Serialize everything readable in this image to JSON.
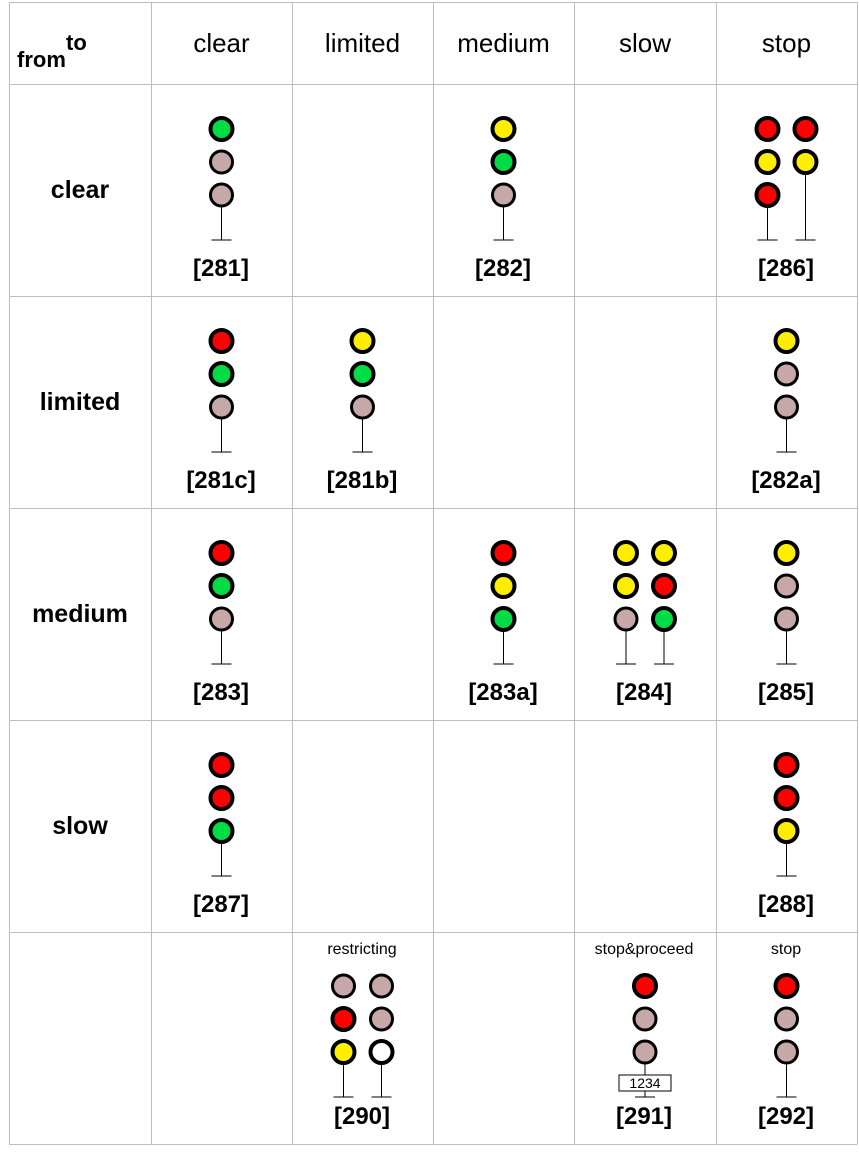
{
  "corner": {
    "to": "to",
    "from": "from"
  },
  "columns": [
    "clear",
    "limited",
    "medium",
    "slow",
    "stop"
  ],
  "rows": [
    "clear",
    "limited",
    "medium",
    "slow",
    ""
  ],
  "colors": {
    "red": "#ff0000",
    "yellow": "#ffee00",
    "green": "#00dd44",
    "dark": "#c7a8a8",
    "lunar": "#ffffff",
    "outline": "#000000"
  },
  "cells": [
    {
      "id": "281",
      "code": "[281]",
      "row": 0,
      "col": 0,
      "masts": [
        [
          "green",
          "dark",
          "dark"
        ]
      ]
    },
    {
      "id": "282",
      "code": "[282]",
      "row": 0,
      "col": 2,
      "masts": [
        [
          "yellow",
          "green",
          "dark"
        ]
      ]
    },
    {
      "id": "286",
      "code": "[286]",
      "row": 0,
      "col": 4,
      "masts": [
        [
          "red",
          "yellow",
          "red"
        ],
        [
          "red",
          "yellow"
        ]
      ]
    },
    {
      "id": "281c",
      "code": "[281c]",
      "row": 1,
      "col": 0,
      "masts": [
        [
          "red",
          "green",
          "dark"
        ]
      ]
    },
    {
      "id": "281b",
      "code": "[281b]",
      "row": 1,
      "col": 1,
      "masts": [
        [
          "yellow",
          "green",
          "dark"
        ]
      ]
    },
    {
      "id": "282a",
      "code": "[282a]",
      "row": 1,
      "col": 4,
      "masts": [
        [
          "yellow",
          "dark",
          "dark"
        ]
      ]
    },
    {
      "id": "283",
      "code": "[283]",
      "row": 2,
      "col": 0,
      "masts": [
        [
          "red",
          "green",
          "dark"
        ]
      ]
    },
    {
      "id": "283a",
      "code": "[283a]",
      "row": 2,
      "col": 2,
      "masts": [
        [
          "red",
          "yellow",
          "green"
        ]
      ]
    },
    {
      "id": "284",
      "code": "[284]",
      "row": 2,
      "col": 3,
      "masts": [
        [
          "yellow",
          "yellow",
          "dark"
        ],
        [
          "yellow",
          "red",
          "green"
        ]
      ]
    },
    {
      "id": "285",
      "code": "[285]",
      "row": 2,
      "col": 4,
      "masts": [
        [
          "yellow",
          "dark",
          "dark"
        ]
      ]
    },
    {
      "id": "287",
      "code": "[287]",
      "row": 3,
      "col": 0,
      "masts": [
        [
          "red",
          "red",
          "green"
        ]
      ]
    },
    {
      "id": "288",
      "code": "[288]",
      "row": 3,
      "col": 4,
      "masts": [
        [
          "red",
          "red",
          "yellow"
        ]
      ]
    },
    {
      "id": "290",
      "code": "[290]",
      "row": 4,
      "col": 1,
      "caption": "restricting",
      "masts": [
        [
          "dark",
          "red",
          "yellow"
        ],
        [
          "dark",
          "dark",
          "lunar"
        ]
      ]
    },
    {
      "id": "291",
      "code": "[291]",
      "row": 4,
      "col": 3,
      "caption": "stop&proceed",
      "plate": "1234",
      "masts": [
        [
          "red",
          "dark",
          "dark"
        ]
      ]
    },
    {
      "id": "292",
      "code": "[292]",
      "row": 4,
      "col": 4,
      "caption": "stop",
      "masts": [
        [
          "red",
          "dark",
          "dark"
        ]
      ]
    }
  ]
}
